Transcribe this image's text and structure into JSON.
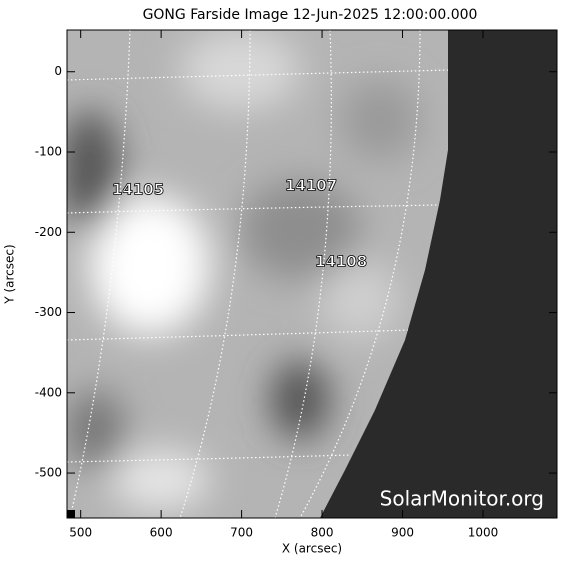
{
  "chart_data": {
    "type": "image",
    "title": "GONG Farside Image 12-Jun-2025 12:00:00.000",
    "xlabel": "X (arcsec)",
    "ylabel": "Y (arcsec)",
    "xlim": [
      483,
      1092
    ],
    "ylim": [
      -556,
      52
    ],
    "xticks": [
      500,
      600,
      700,
      800,
      900,
      1000
    ],
    "yticks": [
      0,
      -100,
      -200,
      -300,
      -400,
      -500
    ],
    "annotations": [
      "14105",
      "14107",
      "14108"
    ],
    "watermark": "SolarMonitor.org"
  }
}
